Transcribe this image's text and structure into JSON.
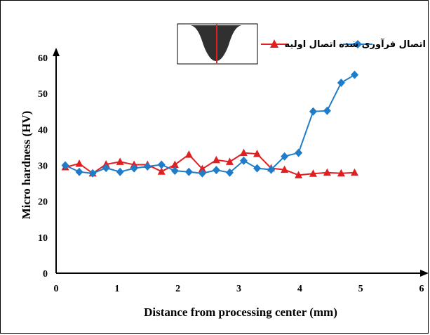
{
  "chart_data": {
    "type": "line",
    "xlabel": "Distance from processing center (mm)",
    "ylabel": "Micro hardness (HV)",
    "xlim": [
      0,
      6
    ],
    "ylim": [
      0,
      60
    ],
    "x_ticks": [
      "0",
      "1",
      "2",
      "3",
      "4",
      "5",
      "6"
    ],
    "y_ticks": [
      "0",
      "10",
      "20",
      "30",
      "40",
      "50",
      "60"
    ],
    "grid": false,
    "legend_position": "top",
    "series": [
      {
        "name": "اتصال اولیه",
        "color": "#e02020",
        "marker": "triangle",
        "x": [
          0.15,
          0.38,
          0.6,
          0.82,
          1.05,
          1.28,
          1.5,
          1.73,
          1.95,
          2.18,
          2.4,
          2.63,
          2.85,
          3.08,
          3.3,
          3.53,
          3.75,
          3.98,
          4.22,
          4.45,
          4.68,
          4.9
        ],
        "values": [
          29.5,
          30.5,
          27.8,
          30.3,
          31,
          30.2,
          30.2,
          28.3,
          30.2,
          33,
          29,
          31.5,
          31,
          33.5,
          33.2,
          29.2,
          28.8,
          27.3,
          27.7,
          28,
          27.8,
          28
        ]
      },
      {
        "name": "اتصال فرآوری شده",
        "color": "#1e7cc8",
        "marker": "diamond",
        "x": [
          0.15,
          0.38,
          0.6,
          0.82,
          1.05,
          1.28,
          1.5,
          1.73,
          1.95,
          2.18,
          2.4,
          2.63,
          2.85,
          3.08,
          3.3,
          3.53,
          3.75,
          3.98,
          4.22,
          4.45,
          4.68,
          4.9
        ],
        "values": [
          30,
          28.2,
          27.8,
          29.3,
          28.2,
          29.2,
          29.7,
          30.2,
          28.5,
          28.2,
          27.8,
          28.7,
          28,
          31.3,
          29.2,
          28.8,
          32.5,
          33.5,
          45,
          45.2,
          53,
          55.2
        ]
      }
    ]
  }
}
